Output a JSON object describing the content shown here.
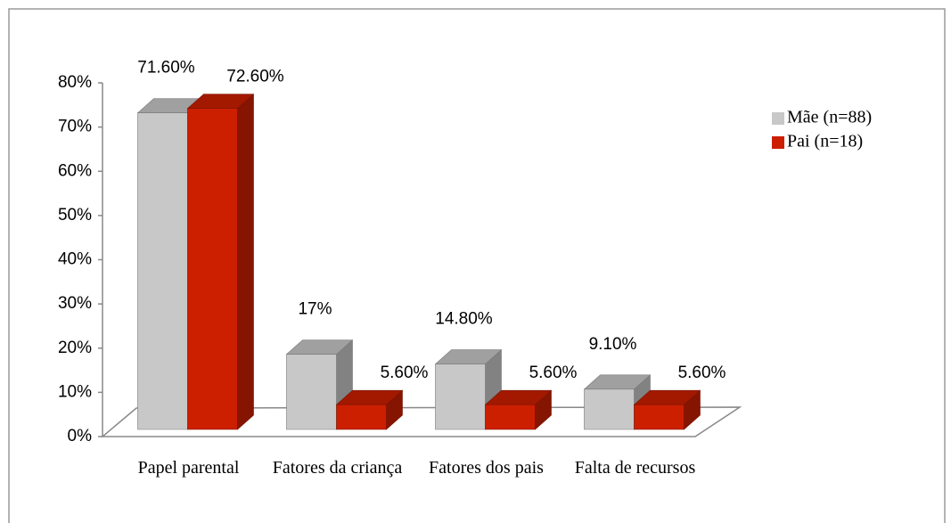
{
  "chart_data": {
    "type": "bar3d",
    "categories": [
      "Papel parental",
      "Fatores da criança",
      "Fatores dos pais",
      "Falta de recursos"
    ],
    "series": [
      {
        "name": "Mãe (n=88)",
        "color": "#c8c8c8",
        "values": [
          71.6,
          17,
          14.8,
          9.1
        ],
        "value_labels": [
          "71.60%",
          "17%",
          "14.80%",
          "9.10%"
        ]
      },
      {
        "name": "Pai (n=18)",
        "color": "#cc1f00",
        "values": [
          72.6,
          5.6,
          5.6,
          5.6
        ],
        "value_labels": [
          "72.60%",
          "5.60%",
          "5.60%",
          "5.60%"
        ]
      }
    ],
    "ylim": [
      0,
      80
    ],
    "yticks": [
      {
        "value": 0,
        "label": "0%"
      },
      {
        "value": 10,
        "label": "10%"
      },
      {
        "value": 20,
        "label": "20%"
      },
      {
        "value": 30,
        "label": "30%"
      },
      {
        "value": 40,
        "label": "40%"
      },
      {
        "value": 50,
        "label": "50%"
      },
      {
        "value": 60,
        "label": "60%"
      },
      {
        "value": 70,
        "label": "70%"
      },
      {
        "value": 80,
        "label": "80%"
      }
    ],
    "legend": "right"
  }
}
